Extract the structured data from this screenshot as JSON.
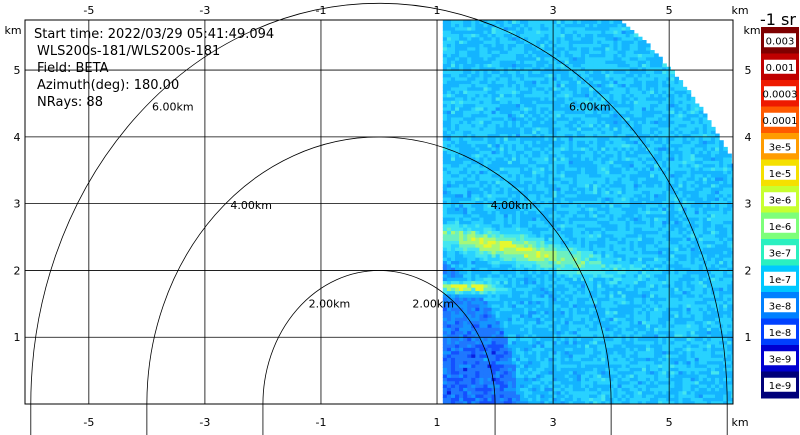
{
  "chart_data": {
    "type": "heatmap",
    "subtype": "ppi-radar-sector",
    "info": {
      "start_time": "Start time: 2022/03/29 05:41:49.094",
      "instrument": "WLS200s-181/WLS200s-181",
      "field": "Field: BETA",
      "azimuth": "Azimuth(deg): 180.00",
      "nrays": "NRays: 88"
    },
    "x_unit": "km",
    "y_unit": "km",
    "xlim": [
      -6.1,
      6.1
    ],
    "ylim": [
      0,
      5.75
    ],
    "x_ticks": [
      "-5",
      "-3",
      "-1",
      "1",
      "3",
      "5"
    ],
    "x_tick_values": [
      -5,
      -3,
      -1,
      1,
      3,
      5
    ],
    "y_ticks": [
      "1",
      "2",
      "3",
      "4",
      "5"
    ],
    "y_tick_values": [
      1,
      2,
      3,
      4,
      5
    ],
    "range_rings": [
      {
        "radius": 2,
        "label": "2.00km"
      },
      {
        "radius": 4,
        "label": "4.00km"
      },
      {
        "radius": 6,
        "label": "6.00km"
      }
    ],
    "grid": true,
    "sector": {
      "x_min": 1.1,
      "r_max": 7.1
    },
    "colorbar": {
      "title": "-1 sr",
      "labels": [
        "0.003",
        "0.001",
        "0.0003",
        "0.0001",
        "3e-5",
        "1e-5",
        "3e-6",
        "1e-6",
        "3e-7",
        "1e-7",
        "3e-8",
        "1e-8",
        "3e-9",
        "1e-9"
      ],
      "colors": [
        "#7f0000",
        "#c00000",
        "#ee1a00",
        "#ff5a00",
        "#ff9c00",
        "#f5e000",
        "#c7ff30",
        "#7dff7a",
        "#2af0c0",
        "#00c8ff",
        "#0080ff",
        "#0040ff",
        "#0000d0",
        "#00007a"
      ]
    }
  }
}
